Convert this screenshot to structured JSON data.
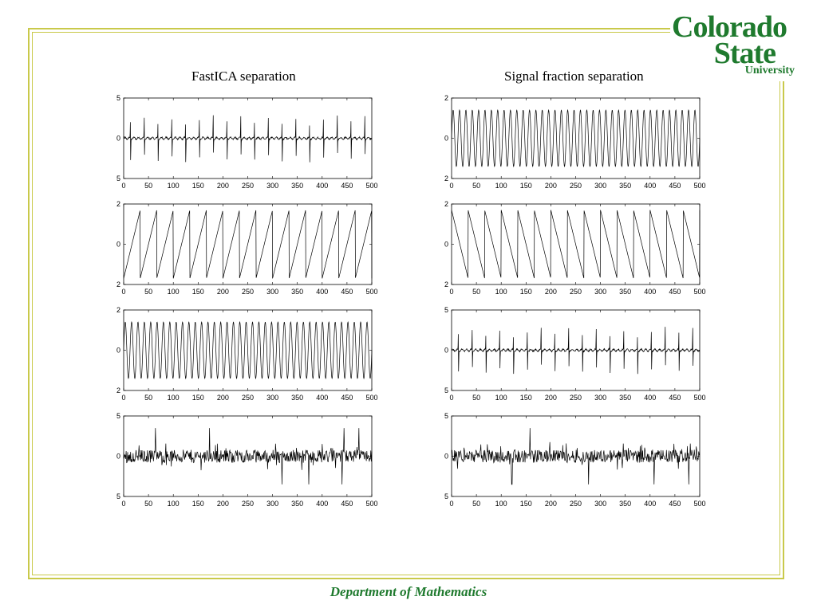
{
  "slide": {
    "logo_line1": "Colorado",
    "logo_line2": "State",
    "logo_line3": "University",
    "footer": "Department of Mathematics",
    "accent_color": "#1f7a2e",
    "border_color": "#c9c94a"
  },
  "columns": [
    {
      "title": "FastICA separation"
    },
    {
      "title": "Signal fraction separation"
    }
  ],
  "chart_data": [
    {
      "type": "line",
      "column": "FastICA separation",
      "row": 1,
      "shape": "spike",
      "x": [
        0,
        500
      ],
      "xticks": [
        0,
        50,
        100,
        150,
        200,
        250,
        300,
        350,
        400,
        450,
        500
      ],
      "ylim": [
        -5,
        5
      ],
      "ytick_labels": [
        "5",
        "0",
        "5"
      ],
      "cycles": 18,
      "amplitude": 3
    },
    {
      "type": "line",
      "column": "FastICA separation",
      "row": 2,
      "shape": "sawtooth",
      "x": [
        0,
        500
      ],
      "xticks": [
        0,
        50,
        100,
        150,
        200,
        250,
        300,
        350,
        400,
        450,
        500
      ],
      "ylim": [
        -2,
        2
      ],
      "ytick_labels": [
        "2",
        "0",
        "2"
      ],
      "cycles": 15,
      "amplitude": 1.7
    },
    {
      "type": "line",
      "column": "FastICA separation",
      "row": 3,
      "shape": "sine",
      "x": [
        0,
        500
      ],
      "xticks": [
        0,
        50,
        100,
        150,
        200,
        250,
        300,
        350,
        400,
        450,
        500
      ],
      "ylim": [
        -2,
        2
      ],
      "ytick_labels": [
        "2",
        "0",
        "2"
      ],
      "cycles": 39,
      "amplitude": 1.4
    },
    {
      "type": "line",
      "column": "FastICA separation",
      "row": 4,
      "shape": "noise",
      "x": [
        0,
        500
      ],
      "xticks": [
        0,
        50,
        100,
        150,
        200,
        250,
        300,
        350,
        400,
        450,
        500
      ],
      "ylim": [
        -5,
        5
      ],
      "ytick_labels": [
        "5",
        "0",
        "5"
      ],
      "amplitude": 3.5
    },
    {
      "type": "line",
      "column": "Signal fraction separation",
      "row": 1,
      "shape": "sine",
      "x": [
        0,
        500
      ],
      "xticks": [
        0,
        50,
        100,
        150,
        200,
        250,
        300,
        350,
        400,
        450,
        500
      ],
      "ylim": [
        -2,
        2
      ],
      "ytick_labels": [
        "2",
        "0",
        "2"
      ],
      "cycles": 39,
      "amplitude": 1.4
    },
    {
      "type": "line",
      "column": "Signal fraction separation",
      "row": 2,
      "shape": "sawtooth-down",
      "x": [
        0,
        500
      ],
      "xticks": [
        0,
        50,
        100,
        150,
        200,
        250,
        300,
        350,
        400,
        450,
        500
      ],
      "ylim": [
        -2,
        2
      ],
      "ytick_labels": [
        "2",
        "0",
        "2"
      ],
      "cycles": 15,
      "amplitude": 1.7
    },
    {
      "type": "line",
      "column": "Signal fraction separation",
      "row": 3,
      "shape": "spike",
      "x": [
        0,
        500
      ],
      "xticks": [
        0,
        50,
        100,
        150,
        200,
        250,
        300,
        350,
        400,
        450,
        500
      ],
      "ylim": [
        -5,
        5
      ],
      "ytick_labels": [
        "5",
        "0",
        "5"
      ],
      "cycles": 18,
      "amplitude": 3
    },
    {
      "type": "line",
      "column": "Signal fraction separation",
      "row": 4,
      "shape": "noise",
      "x": [
        0,
        500
      ],
      "xticks": [
        0,
        50,
        100,
        150,
        200,
        250,
        300,
        350,
        400,
        450,
        500
      ],
      "ylim": [
        -5,
        5
      ],
      "ytick_labels": [
        "5",
        "0",
        "5"
      ],
      "amplitude": 3.5
    }
  ]
}
